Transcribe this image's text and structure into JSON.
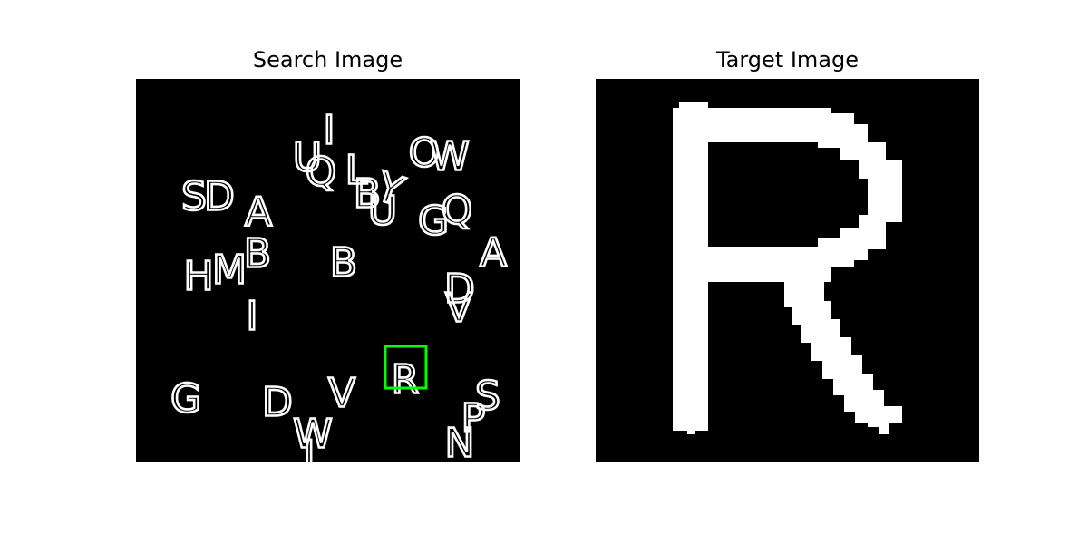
{
  "search_panel": {
    "title": "Search Image",
    "letters": [
      {
        "ch": "I"
      },
      {
        "ch": "U"
      },
      {
        "ch": "Q"
      },
      {
        "ch": "L"
      },
      {
        "ch": "B"
      },
      {
        "ch": "Y"
      },
      {
        "ch": "U"
      },
      {
        "ch": "O"
      },
      {
        "ch": "W"
      },
      {
        "ch": "S"
      },
      {
        "ch": "D"
      },
      {
        "ch": "A"
      },
      {
        "ch": "G"
      },
      {
        "ch": "Q"
      },
      {
        "ch": "A"
      },
      {
        "ch": "B"
      },
      {
        "ch": "H"
      },
      {
        "ch": "M"
      },
      {
        "ch": "B"
      },
      {
        "ch": "D"
      },
      {
        "ch": "V"
      },
      {
        "ch": "I"
      },
      {
        "ch": "G"
      },
      {
        "ch": "D"
      },
      {
        "ch": "V"
      },
      {
        "ch": "W"
      },
      {
        "ch": "J"
      },
      {
        "ch": "R"
      },
      {
        "ch": "S"
      },
      {
        "ch": "P"
      },
      {
        "ch": "N"
      }
    ],
    "match": {
      "letter": "R",
      "box_color": "#00ff00"
    }
  },
  "target_panel": {
    "title": "Target Image",
    "letter": "R"
  },
  "colors": {
    "background": "#000000",
    "glyph": "#ffffff",
    "match_box": "#00ff00"
  }
}
